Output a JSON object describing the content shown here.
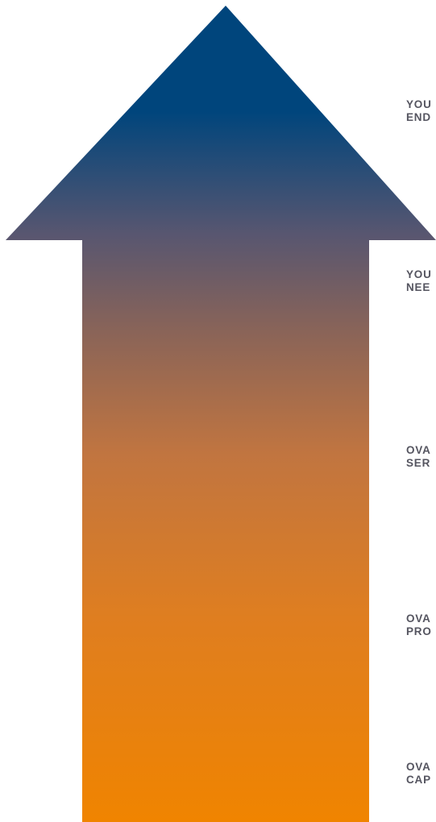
{
  "colors": {
    "arrow_top": "#00457c",
    "arrow_mid": "#6e5c6a",
    "arrow_bottom": "#f08400",
    "label_text": "#555560"
  },
  "diagram": {
    "shape": "upward-arrow",
    "stages": [
      {
        "line1": "YOU",
        "line2": "END"
      },
      {
        "line1": "YOU",
        "line2": "NEE"
      },
      {
        "line1": "OVA",
        "line2": "SER"
      },
      {
        "line1": "OVA",
        "line2": "PRO"
      },
      {
        "line1": "OVA",
        "line2": "CAP"
      }
    ]
  }
}
